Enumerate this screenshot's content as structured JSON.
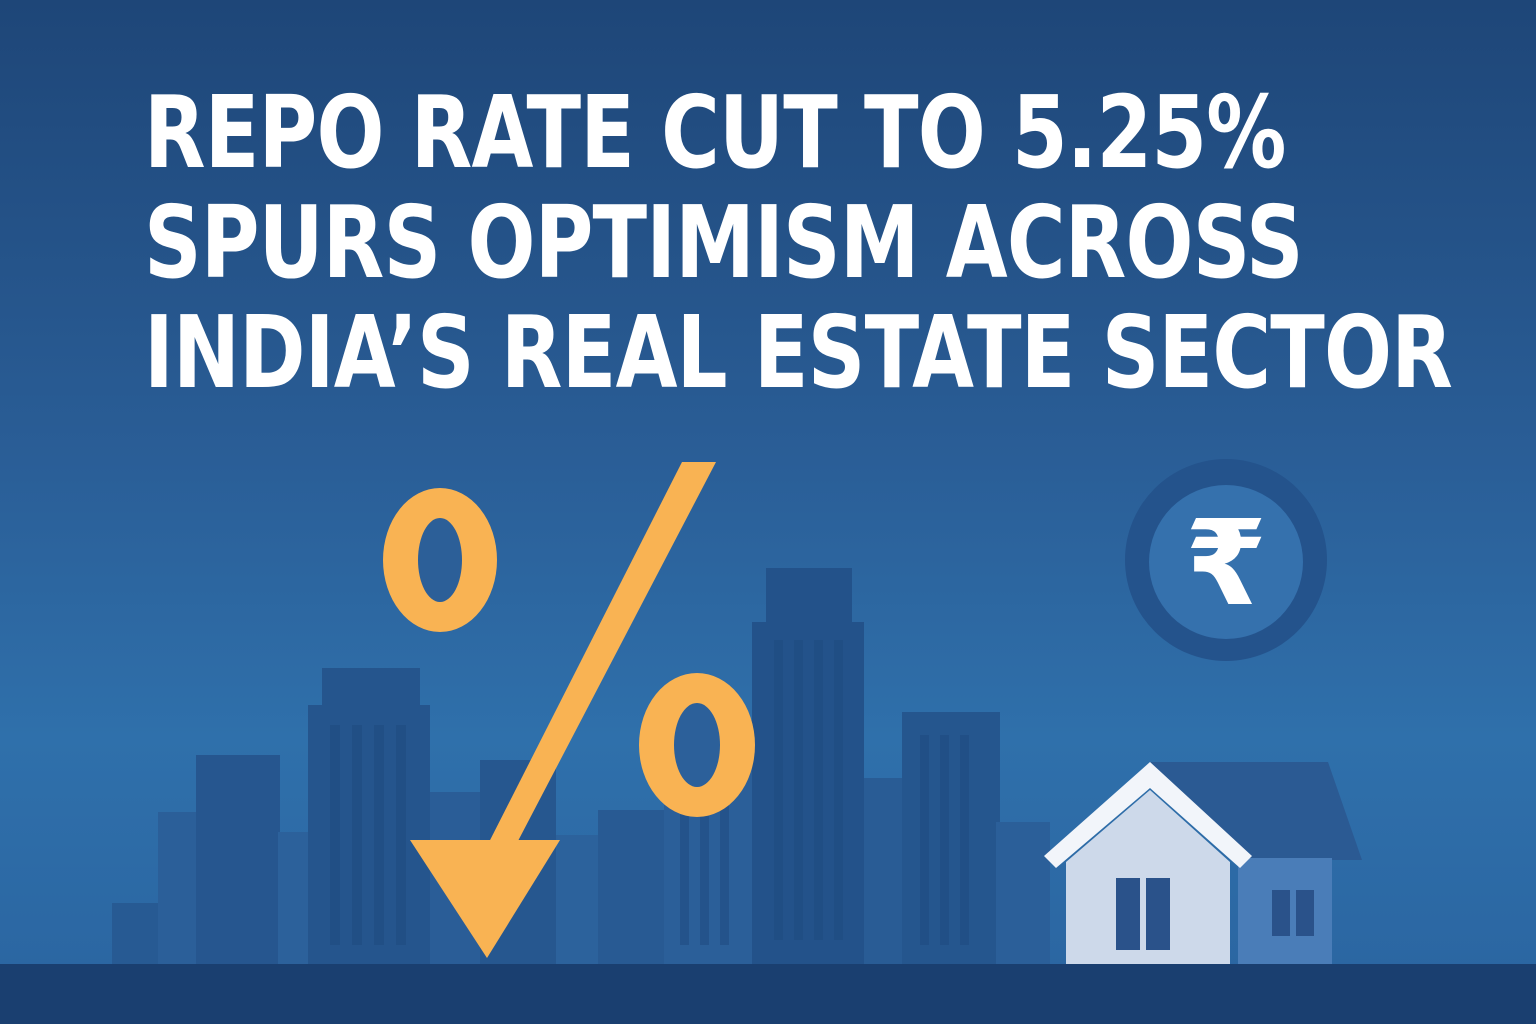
{
  "headline": {
    "line1": "REPO RATE CUT TO 5.25%",
    "line2": "SPURS OPTIMISM ACROSS",
    "line3": "INDIA’S REAL ESTATE SECTOR"
  },
  "icons": {
    "percent": "percent-sign-icon",
    "arrow": "down-arrow-icon",
    "rupee": "rupee-coin-icon",
    "house": "house-icon",
    "skyline": "city-skyline-illustration"
  },
  "colors": {
    "background_top": "#1e4678",
    "background_bottom": "#2f70ab",
    "accent": "#f9b353",
    "headline_text": "#ffffff",
    "house_wall": "#cdd9ea",
    "ground": "#1a3f70"
  }
}
